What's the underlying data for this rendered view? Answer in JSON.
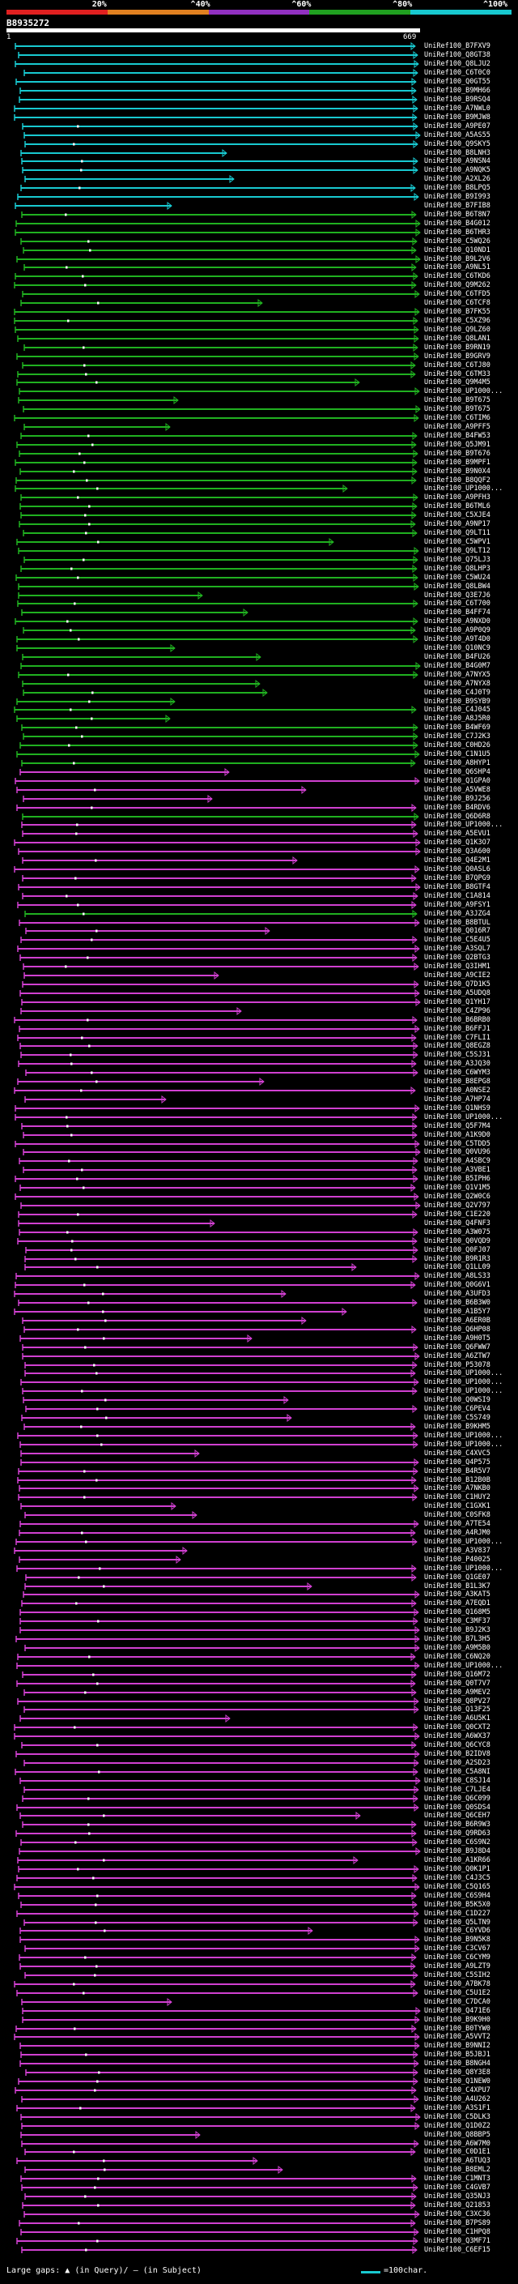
{
  "header": {
    "query_id": "B8935272",
    "scale_labels": [
      "20%",
      "^40%",
      "^60%",
      "^80%",
      "^100%"
    ],
    "scale_colors": [
      "#e02020",
      "#e08020",
      "#9030c0",
      "#20a020",
      "#18c9d0"
    ],
    "coord_start": "1",
    "coord_end": "669"
  },
  "colors": {
    "cyan": "#18c9d0",
    "green": "#20b020",
    "magenta": "#d040d0",
    "label": "#ffffff"
  },
  "hits": [
    "UniRef100_B7FXV9",
    "UniRef100_Q8GT38",
    "UniRef100_Q8LJU2",
    "UniRef100_C6T0C0",
    "UniRef100_Q0GT55",
    "UniRef100_B9MH66",
    "UniRef100_B9RSQ4",
    "UniRef100_A7NWL0",
    "UniRef100_B9MJW8",
    "UniRef100_A9PE07",
    "UniRef100_A5AS55",
    "UniRef100_Q9SKY5",
    "UniRef100_B8LNH3",
    "UniRef100_A9NSN4",
    "UniRef100_A9NQK5",
    "UniRef100_A2XL26",
    "UniRef100_B8LPQ5",
    "UniRef100_B9I993",
    "UniRef100_B7FIB8",
    "UniRef100_B6T8N7",
    "UniRef100_B4G012",
    "UniRef100_B6THR3",
    "UniRef100_C5WQ26",
    "UniRef100_Q10ND1",
    "UniRef100_B9L2V6",
    "UniRef100_A9NL51",
    "UniRef100_C6TKD6",
    "UniRef100_Q9M262",
    "UniRef100_C6TFD5",
    "UniRef100_C6TCF8",
    "UniRef100_B7FK55",
    "UniRef100_C5XZ96",
    "UniRef100_Q9LZ60",
    "UniRef100_Q8LAN1",
    "UniRef100_B9RN19",
    "UniRef100_B9GRV9",
    "UniRef100_C6TJ80",
    "UniRef100_C6TM33",
    "UniRef100_Q9M4M5",
    "UniRef100_UP1000...",
    "UniRef100_B9T675",
    "UniRef100_B9T675",
    "UniRef100_C6TIM6",
    "UniRef100_A9PFF5",
    "UniRef100_B4FW53",
    "UniRef100_Q5JM91",
    "UniRef100_B9T676",
    "UniRef100_B9MPF1",
    "UniRef100_B9N0X4",
    "UniRef100_B8QQF2",
    "UniRef100_UP1000...",
    "UniRef100_A9PFH3",
    "UniRef100_B6TML6",
    "UniRef100_C5XJE4",
    "UniRef100_A9NP17",
    "UniRef100_Q9LT11",
    "UniRef100_C5WPV1",
    "UniRef100_Q9LT12",
    "UniRef100_Q75LJ3",
    "UniRef100_Q8LHP3",
    "UniRef100_C5WU24",
    "UniRef100_Q8LBW4",
    "UniRef100_Q3E7J6",
    "UniRef100_C6T700",
    "UniRef100_B4FF74",
    "UniRef100_A9NXD0",
    "UniRef100_A9P0Q9",
    "UniRef100_A9T4D0",
    "UniRef100_Q10NC9",
    "UniRef100_B4FU26",
    "UniRef100_B4G0M7",
    "UniRef100_A7NYX5",
    "UniRef100_A7NYX8",
    "UniRef100_C4J0T9",
    "UniRef100_B9SYB9",
    "UniRef100_C4J045",
    "UniRef100_A8J5R0",
    "UniRef100_B4WF69",
    "UniRef100_C7J2K3",
    "UniRef100_C0HD26",
    "UniRef100_C1N1U5",
    "UniRef100_A8HYP1",
    "UniRef100_Q6SHP4",
    "UniRef100_Q1GPA0",
    "UniRef100_A5VWE8",
    "UniRef100_B9J256",
    "UniRef100_B4RDV6",
    "UniRef100_Q6D6R8",
    "UniRef100_UP1000...",
    "UniRef100_A5EVU1",
    "UniRef100_Q1K3O7",
    "UniRef100_Q3A600",
    "UniRef100_Q4E2M1",
    "UniRef100_Q0ASL6",
    "UniRef100_B7QPG9",
    "UniRef100_B8GTF4",
    "UniRef100_C1A814",
    "UniRef100_A9FSY1",
    "UniRef100_A3JZG4",
    "UniRef100_B8BTUL",
    "UniRef100_Q016R7",
    "UniRef100_C5E4U5",
    "UniRef100_A3SQL7",
    "UniRef100_Q2BTG3",
    "UniRef100_Q3IHM1",
    "UniRef100_A9CIE2",
    "UniRef100_Q7D1K5",
    "UniRef100_A5UDQ8",
    "UniRef100_Q1YH17",
    "UniRef100_C4ZP96",
    "UniRef100_B6BRB0",
    "UniRef100_B6FFJ1",
    "UniRef100_C7FLI1",
    "UniRef100_Q8EGZ8",
    "UniRef100_C5SJ31",
    "UniRef100_A3JQ30",
    "UniRef100_C6WYM3",
    "UniRef100_B8EPG8",
    "UniRef100_A0NSE2",
    "UniRef100_A7HP74",
    "UniRef100_Q1NHS9",
    "UniRef100_UP1000...",
    "UniRef100_Q5F7M4",
    "UniRef100_A1K9D0",
    "UniRef100_C5TDD5",
    "UniRef100_Q0VU96",
    "UniRef100_A4SBC9",
    "UniRef100_A3VBE1",
    "UniRef100_B5IPH6",
    "UniRef100_Q1V1M5",
    "UniRef100_Q2W0C6",
    "UniRef100_Q2V797",
    "UniRef100_C1E220",
    "UniRef100_Q4FNF3",
    "UniRef100_A3W075",
    "UniRef100_Q0VQD9",
    "UniRef100_Q0FJ07",
    "UniRef100_B9R1R3",
    "UniRef100_Q1LL09",
    "UniRef100_A8LS33",
    "UniRef100_Q0G6V1",
    "UniRef100_A3UFD3",
    "UniRef100_B6B3W0",
    "UniRef100_A1B5Y7",
    "UniRef100_A6ER0B",
    "UniRef100_Q6HP08",
    "UniRef100_A9H0T5",
    "UniRef100_Q6FWW7",
    "UniRef100_A6ZTW7",
    "UniRef100_P53078",
    "UniRef100_UP1000...",
    "UniRef100_UP1000...",
    "UniRef100_UP1000...",
    "UniRef100_Q0WSI9",
    "UniRef100_C6PEV4",
    "UniRef100_C5S749",
    "UniRef100_B9KHM5",
    "UniRef100_UP1000...",
    "UniRef100_UP1000...",
    "UniRef100_C4XVC5",
    "UniRef100_Q4P575",
    "UniRef100_B4R5V7",
    "UniRef100_B12B0B",
    "UniRef100_A7NKB0",
    "UniRef100_C1HUY2",
    "UniRef100_C1GXK1",
    "UniRef100_C0SFK8",
    "UniRef100_A7TE54",
    "UniRef100_A4RJM0",
    "UniRef100_UP1000...",
    "UniRef100_A3V837",
    "UniRef100_P40025",
    "UniRef100_UP1000...",
    "UniRef100_Q1GE07",
    "UniRef100_B1L3K7",
    "UniRef100_A3KAT5",
    "UniRef100_A7EQD1",
    "UniRef100_Q168M5",
    "UniRef100_C3MF37",
    "UniRef100_B9J2K3",
    "UniRef100_B7L3H5",
    "UniRef100_A9M5B0",
    "UniRef100_C6NQ20",
    "UniRef100_UP1000...",
    "UniRef100_Q16M72",
    "UniRef100_Q0T7V7",
    "UniRef100_A9MEV2",
    "UniRef100_Q8PV27",
    "UniRef100_Q13F25",
    "UniRef100_A6U5K1",
    "UniRef100_Q0CXT2",
    "UniRef100_A6WX37",
    "UniRef100_Q6CYC8",
    "UniRef100_B2IDV8",
    "UniRef100_A2SD23",
    "UniRef100_C5A8NI",
    "UniRef100_C8SJ14",
    "UniRef100_C7LJE4",
    "UniRef100_Q6C099",
    "UniRef100_Q0SDS4",
    "UniRef100_Q6CEH7",
    "UniRef100_B6R9W3",
    "UniRef100_Q9RD63",
    "UniRef100_C6S9N2",
    "UniRef100_B9J8D4",
    "UniRef100_A1KR66",
    "UniRef100_Q0K1P1",
    "UniRef100_C4J3C5",
    "UniRef100_C5Q165",
    "UniRef100_C6S9H4",
    "UniRef100_B5K5X0",
    "UniRef100_C1D227",
    "UniRef100_Q5LTN9",
    "UniRef100_C6YVD6",
    "UniRef100_B9N5K8",
    "UniRef100_C3CV67",
    "UniRef100_C6CYM9",
    "UniRef100_A9LZT9",
    "UniRef100_C5SIH2",
    "UniRef100_A7BK78",
    "UniRef100_C5U1E2",
    "UniRef100_C7DCA0",
    "UniRef100_Q471E6",
    "UniRef100_B9K9H0",
    "UniRef100_B0TYW0",
    "UniRef100_A5VVT2",
    "UniRef100_B9NNI2",
    "UniRef100_B5JBJ1",
    "UniRef100_B8NGH4",
    "UniRef100_Q8Y3E8",
    "UniRef100_Q1NEW0",
    "UniRef100_C4XPU7",
    "UniRef100_A4U262",
    "UniRef100_A3S1F1",
    "UniRef100_C5DLK3",
    "UniRef100_Q1D0Z2",
    "UniRef100_Q8BBP5",
    "UniRef100_A6W7M0",
    "UniRef100_C0D1E1",
    "UniRef100_A6TUQ3",
    "UniRef100_B8EML2",
    "UniRef100_C1MNT3",
    "UniRef100_C4GVB7",
    "UniRef100_Q35NJ3",
    "UniRef100_Q21853",
    "UniRef100_C3XC36",
    "UniRef100_B7PS89",
    "UniRef100_C1HPQ8",
    "UniRef100_Q3MF71",
    "UniRef100_C6EF15"
  ],
  "footer": {
    "large_gaps_label": "Large gaps:",
    "in_query_label": "(in Query)/",
    "in_subject_label": "(in Subject)",
    "scale_legend": "=100char."
  }
}
